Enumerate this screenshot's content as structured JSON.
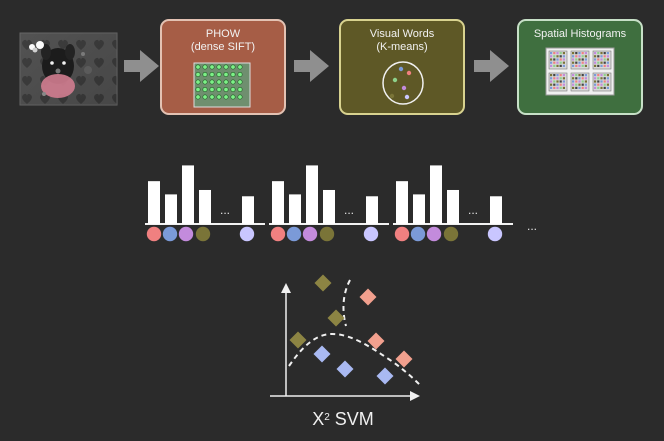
{
  "pipeline": {
    "steps": [
      {
        "title": "PHOW",
        "subtitle": "(dense SIFT)",
        "color": "#a65d46"
      },
      {
        "title": "Visual Words",
        "subtitle": "(K-means)",
        "color": "#5e5826"
      },
      {
        "title": "Spatial Histograms",
        "subtitle": "",
        "color": "#3f6f3f"
      }
    ]
  },
  "histograms": {
    "ellipsis": "...",
    "groups": [
      {
        "values": [
          0.68,
          0.47,
          0.93,
          0.54,
          0.44
        ]
      },
      {
        "values": [
          0.68,
          0.47,
          0.93,
          0.54,
          0.44
        ]
      },
      {
        "values": [
          0.68,
          0.47,
          0.93,
          0.54,
          0.44
        ]
      }
    ],
    "trailing_ellipsis": "...",
    "dot_colors": [
      "#f08080",
      "#7b9ad8",
      "#c38bdc",
      "#7a7438",
      "#c9c6ff"
    ]
  },
  "svm": {
    "label_prefix": "X",
    "label_sup": "2",
    "label_suffix": " SVM"
  },
  "colors": {
    "background": "#2b2b2b",
    "arrow": "#8f8f8f",
    "diamond_olive": "#8c8443",
    "diamond_salmon": "#f2a08e",
    "diamond_blue": "#a9b9f2"
  }
}
